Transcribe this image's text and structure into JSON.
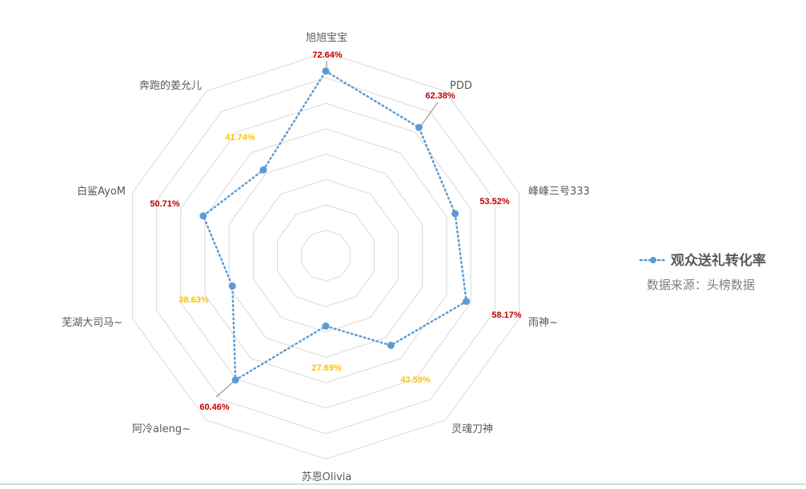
{
  "chart_data": {
    "type": "radar",
    "title": "",
    "series": [
      {
        "name": "观众送礼转化率",
        "color": "#5b9bd5",
        "values": [
          72.64,
          62.38,
          53.52,
          58.17,
          43.59,
          27.69,
          60.46,
          38.63,
          50.71,
          41.74
        ]
      }
    ],
    "categories": [
      "旭旭宝宝",
      "PDD",
      "峰峰三号333",
      "雨神~",
      "灵魂刀神",
      "苏恩Olivia",
      "阿冷aleng~",
      "芜湖大司马~",
      "白鲨AyoM",
      "奔跑的姜允儿"
    ],
    "value_labels": [
      "72.64%",
      "62.38%",
      "53.52%",
      "58.17%",
      "43.59%",
      "27.69%",
      "60.46%",
      "38.63%",
      "50.71%",
      "41.74%"
    ],
    "value_label_colors": [
      "#c00000",
      "#c00000",
      "#c00000",
      "#c00000",
      "#ffc000",
      "#ffc000",
      "#c00000",
      "#ffc000",
      "#c00000",
      "#ffc000"
    ],
    "rlim": [
      0,
      80
    ],
    "ring_step": 10,
    "grid": true,
    "legend_position": "right"
  },
  "legend": {
    "series_label": "观众送礼转化率",
    "source_label": "数据来源：头榜数据"
  },
  "colors": {
    "series": "#5b9bd5",
    "grid": "#d9d9d9",
    "high": "#c00000",
    "low": "#ffc000",
    "axis_text": "#595959"
  }
}
